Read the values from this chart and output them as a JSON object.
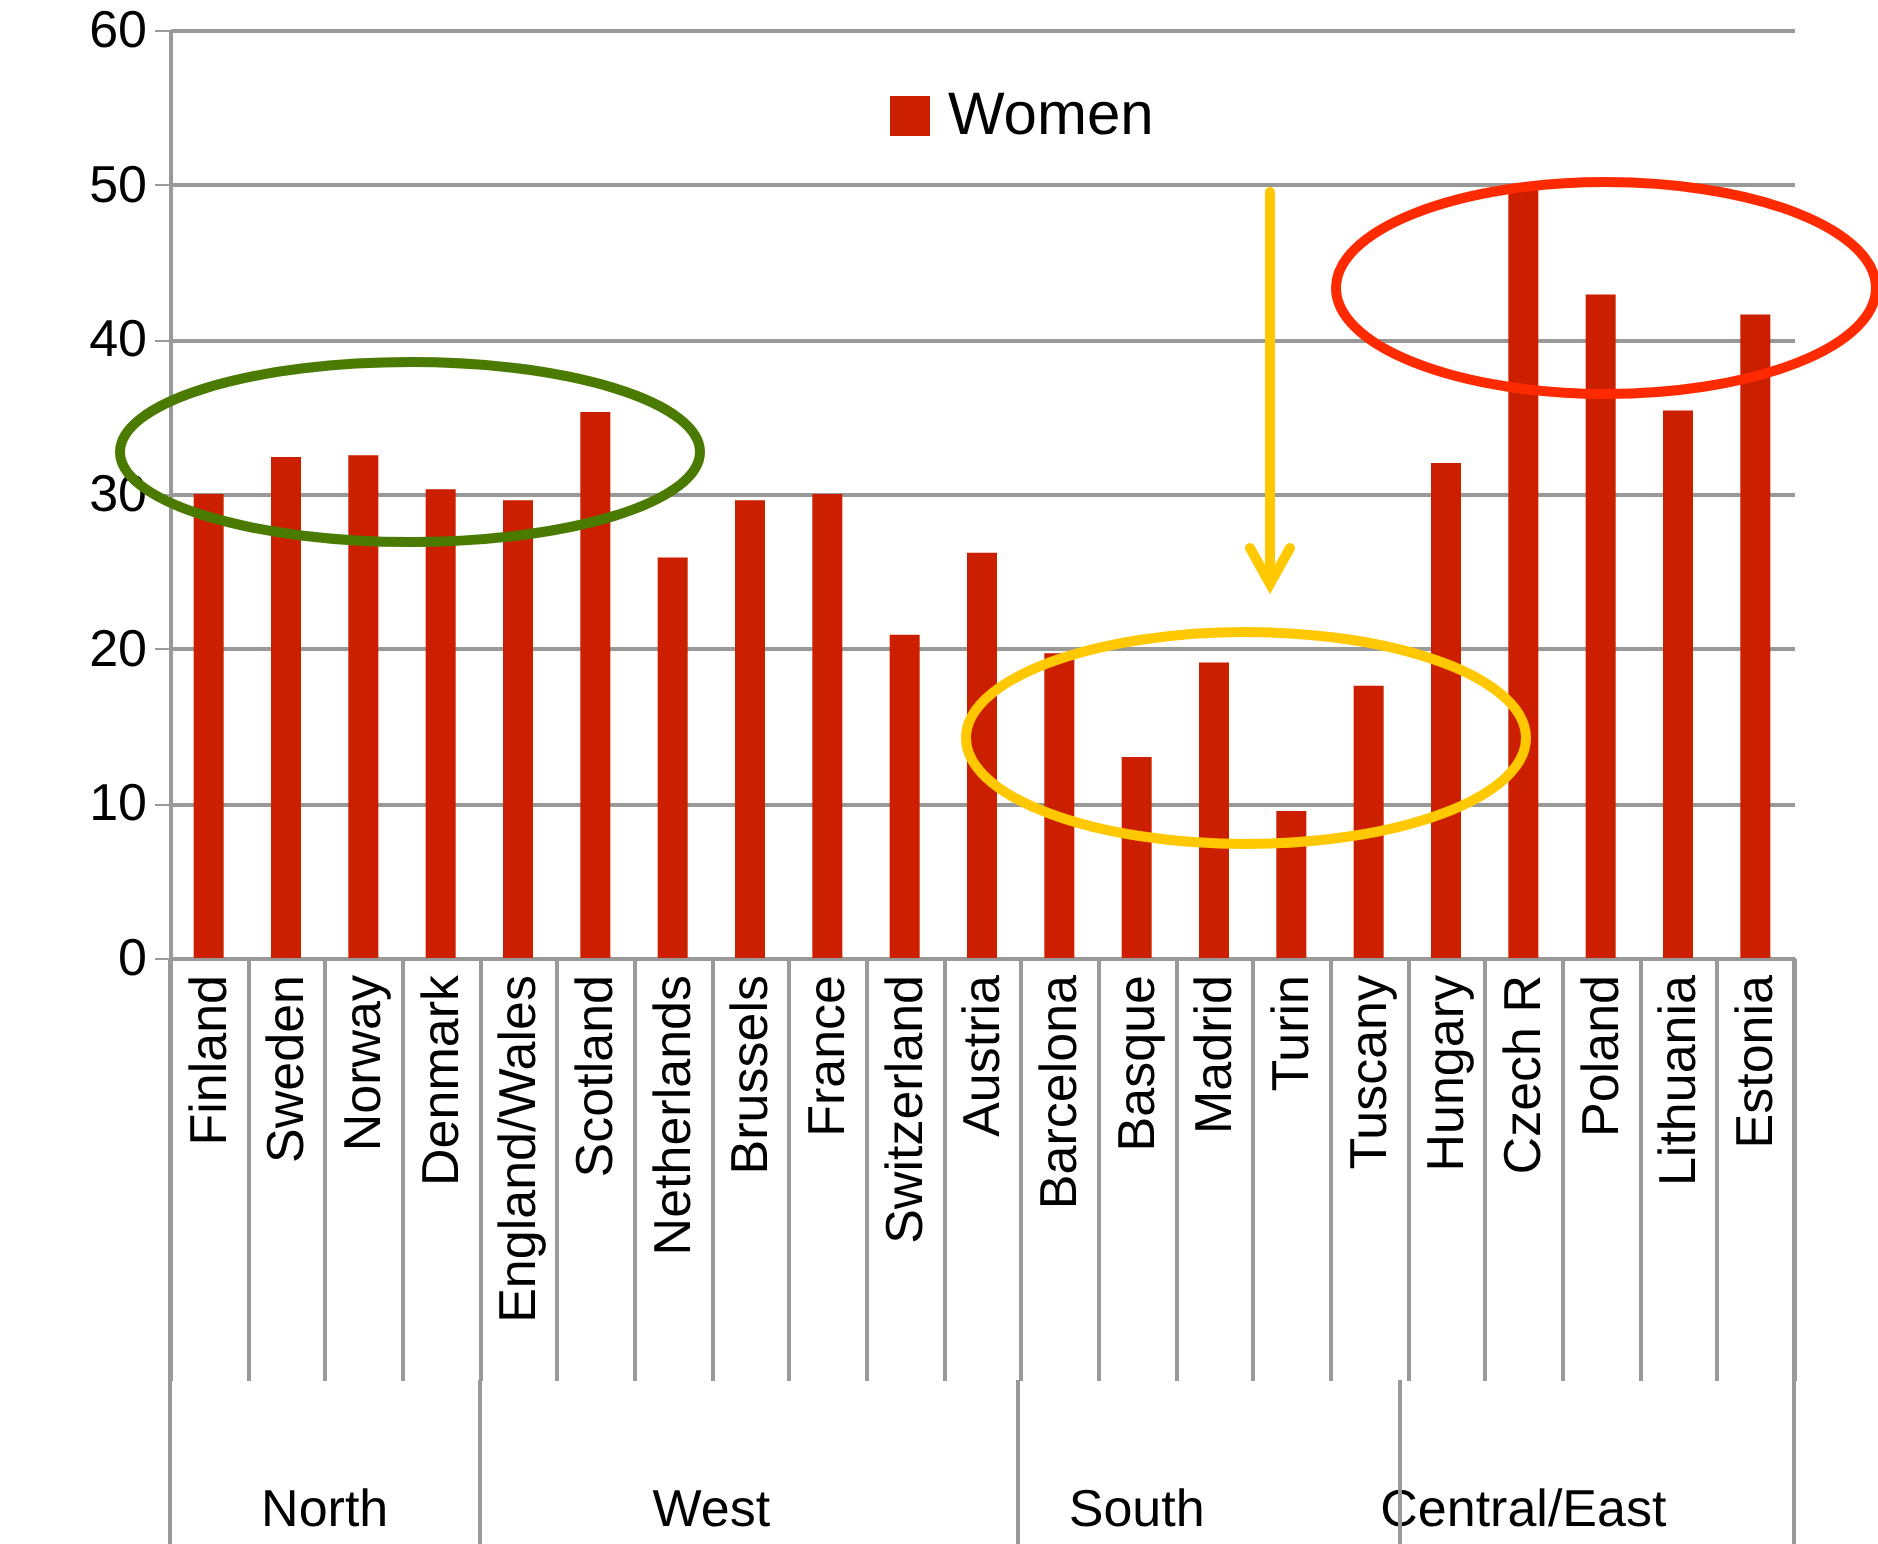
{
  "chart_data": {
    "type": "bar",
    "categories": [
      "Finland",
      "Sweden",
      "Norway",
      "Denmark",
      "England/Wales",
      "Scotland",
      "Netherlands",
      "Brussels",
      "France",
      "Switzerland",
      "Austria",
      "Barcelona",
      "Basque",
      "Madrid",
      "Turin",
      "Tuscany",
      "Hungary",
      "Czech R",
      "Poland",
      "Lithuania",
      "Estonia"
    ],
    "series": [
      {
        "name": "Women",
        "color": "#cc1f00",
        "values": [
          30.0,
          32.4,
          32.5,
          30.3,
          29.6,
          35.3,
          25.9,
          29.6,
          30.0,
          20.9,
          26.2,
          19.7,
          13.0,
          19.1,
          9.5,
          17.6,
          32.0,
          49.9,
          42.9,
          35.4,
          41.6
        ]
      }
    ],
    "annotations": [
      "North",
      "West",
      "South",
      "Central/East"
    ],
    "ylim": [
      0,
      60
    ],
    "yticks": [
      0,
      10,
      20,
      30,
      40,
      50,
      60
    ],
    "grid": "y",
    "legend": "top"
  }
}
